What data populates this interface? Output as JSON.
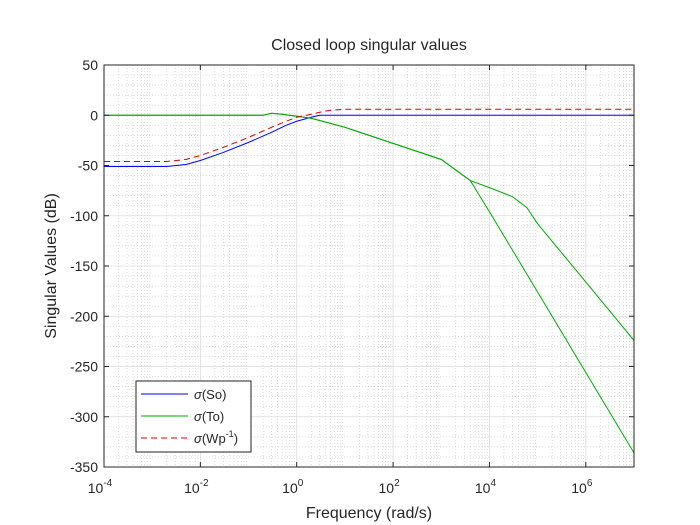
{
  "chart_data": {
    "type": "line",
    "title": "Closed loop singular values",
    "xlabel": "Frequency (rad/s)",
    "ylabel": "Singular Values (dB)",
    "xscale": "log",
    "xlim": [
      0.0001,
      10000000
    ],
    "ylim": [
      -350,
      50
    ],
    "grid": "on (major and minor)",
    "legend_location": "bottom-left",
    "x_ticks": [
      {
        "value": 0.0001,
        "base": "10",
        "exp": "-4"
      },
      {
        "value": 0.01,
        "base": "10",
        "exp": "-2"
      },
      {
        "value": 1,
        "base": "10",
        "exp": "0"
      },
      {
        "value": 100,
        "base": "10",
        "exp": "2"
      },
      {
        "value": 10000,
        "base": "10",
        "exp": "4"
      },
      {
        "value": 1000000,
        "base": "10",
        "exp": "6"
      }
    ],
    "y_ticks": [
      {
        "value": 50,
        "label": "50"
      },
      {
        "value": 0,
        "label": "0"
      },
      {
        "value": -50,
        "label": "-50"
      },
      {
        "value": -100,
        "label": "-100"
      },
      {
        "value": -150,
        "label": "-150"
      },
      {
        "value": -200,
        "label": "-200"
      },
      {
        "value": -250,
        "label": "-250"
      },
      {
        "value": -300,
        "label": "-300"
      },
      {
        "value": -350,
        "label": "-350"
      }
    ],
    "series": [
      {
        "name": "σ(So)",
        "legend_symbol": "σ",
        "legend_rest": "(So)",
        "legend_sup": "",
        "legend_tail": "",
        "color": "#0000ff",
        "dash": "solid",
        "lines": [
          [
            [
              0.0001,
              -51
            ],
            [
              0.002,
              -51
            ],
            [
              0.005,
              -49
            ],
            [
              0.01,
              -45
            ],
            [
              0.03,
              -37
            ],
            [
              0.1,
              -27
            ],
            [
              0.3,
              -17
            ],
            [
              0.6,
              -10
            ],
            [
              1,
              -6
            ],
            [
              2,
              -2
            ],
            [
              3,
              0
            ],
            [
              10,
              0
            ],
            [
              100,
              0
            ],
            [
              10000,
              0
            ],
            [
              10000000,
              0
            ]
          ]
        ]
      },
      {
        "name": "σ(To)",
        "legend_symbol": "σ",
        "legend_rest": "(To)",
        "legend_sup": "",
        "legend_tail": "",
        "color": "#00aa00",
        "dash": "solid",
        "lines": [
          [
            [
              0.0001,
              0
            ],
            [
              0.2,
              0
            ],
            [
              0.3,
              2
            ],
            [
              0.5,
              1
            ],
            [
              1,
              -1
            ],
            [
              2,
              -3
            ],
            [
              10,
              -12
            ],
            [
              100,
              -28
            ],
            [
              1000,
              -44
            ],
            [
              4000,
              -65
            ],
            [
              10000,
              -96
            ],
            [
              100000,
              -176
            ],
            [
              1000000,
              -256
            ],
            [
              10000000,
              -336
            ]
          ],
          [
            [
              0.0001,
              0
            ],
            [
              0.2,
              0
            ],
            [
              0.3,
              2
            ],
            [
              0.5,
              1
            ],
            [
              1,
              -1
            ],
            [
              2,
              -3
            ],
            [
              10,
              -12
            ],
            [
              100,
              -28
            ],
            [
              1000,
              -44
            ],
            [
              4000,
              -65
            ],
            [
              10000,
              -72
            ],
            [
              30000,
              -81
            ],
            [
              60000,
              -92
            ],
            [
              100000,
              -108
            ],
            [
              1000000,
              -166
            ],
            [
              10000000,
              -224
            ]
          ]
        ]
      },
      {
        "name": "σ(Wp-1)",
        "legend_symbol": "σ",
        "legend_rest": "(Wp",
        "legend_sup": "-1",
        "legend_tail": ")",
        "color": "#dd0000",
        "dash": "dashed",
        "lines": [
          [
            [
              0.0001,
              -46
            ],
            [
              0.002,
              -46
            ],
            [
              0.005,
              -44
            ],
            [
              0.01,
              -40
            ],
            [
              0.03,
              -32
            ],
            [
              0.1,
              -22
            ],
            [
              0.3,
              -12
            ],
            [
              0.6,
              -6
            ],
            [
              1,
              -2
            ],
            [
              2,
              1
            ],
            [
              3,
              3
            ],
            [
              5,
              5
            ],
            [
              10,
              6
            ],
            [
              100,
              6
            ],
            [
              10000,
              6
            ],
            [
              10000000,
              6
            ]
          ]
        ]
      }
    ]
  }
}
